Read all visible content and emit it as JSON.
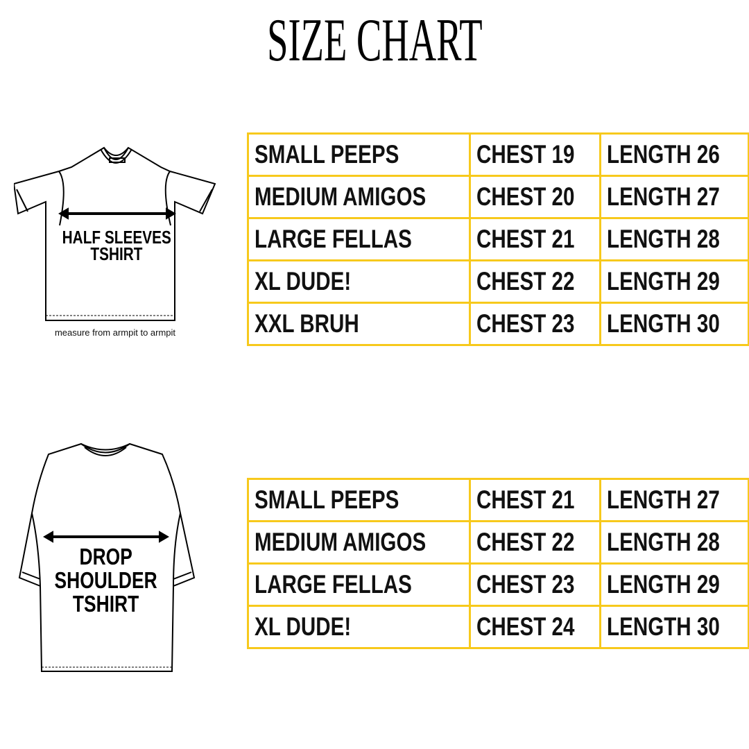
{
  "title": "SIZE CHART",
  "accent_color": "#f7c91c",
  "half_sleeves": {
    "label_line1": "HALF SLEEVES",
    "label_line2": "TSHIRT",
    "note": "measure from armpit to armpit",
    "rows": [
      {
        "size": "SMALL PEEPS",
        "chest": "CHEST 19",
        "length": "LENGTH 26"
      },
      {
        "size": "MEDIUM AMIGOS",
        "chest": "CHEST 20",
        "length": "LENGTH 27"
      },
      {
        "size": "LARGE FELLAS",
        "chest": "CHEST 21",
        "length": "LENGTH 28"
      },
      {
        "size": "XL DUDE!",
        "chest": "CHEST 22",
        "length": "LENGTH 29"
      },
      {
        "size": "XXL BRUH",
        "chest": "CHEST 23",
        "length": "LENGTH 30"
      }
    ]
  },
  "drop_shoulder": {
    "label_line1": "DROP",
    "label_line2": "SHOULDER",
    "label_line3": "TSHIRT",
    "rows": [
      {
        "size": "SMALL PEEPS",
        "chest": "CHEST 21",
        "length": "LENGTH 27"
      },
      {
        "size": "MEDIUM AMIGOS",
        "chest": "CHEST 22",
        "length": "LENGTH 28"
      },
      {
        "size": "LARGE FELLAS",
        "chest": "CHEST 23",
        "length": "LENGTH 29"
      },
      {
        "size": "XL DUDE!",
        "chest": "CHEST 24",
        "length": "LENGTH 30"
      }
    ]
  }
}
